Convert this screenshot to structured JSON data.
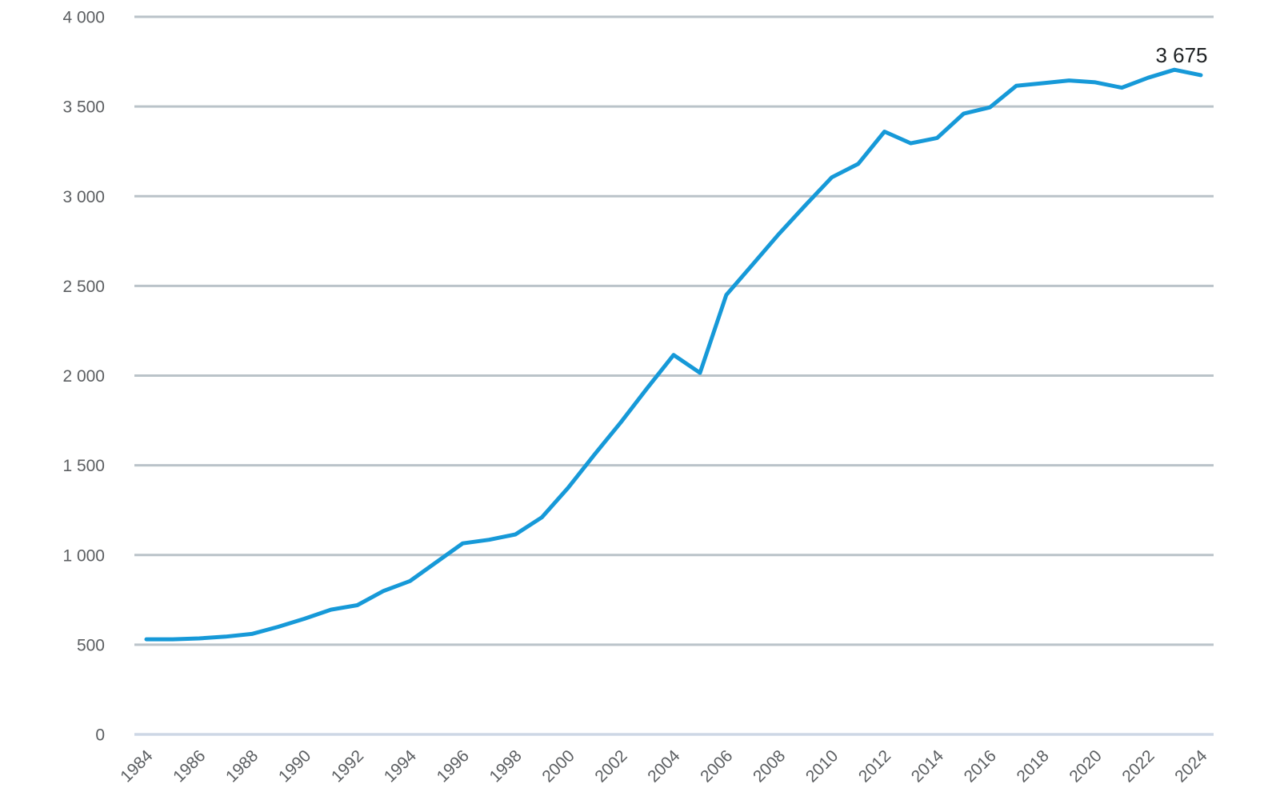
{
  "chart_data": {
    "type": "line",
    "title": "",
    "xlabel": "",
    "ylabel": "",
    "grid": true,
    "legend": "none",
    "ylim": [
      0,
      4000
    ],
    "x": [
      1984,
      1985,
      1986,
      1987,
      1988,
      1989,
      1990,
      1991,
      1992,
      1993,
      1994,
      1995,
      1996,
      1997,
      1998,
      1999,
      2000,
      2001,
      2002,
      2003,
      2004,
      2005,
      2006,
      2007,
      2008,
      2009,
      2010,
      2011,
      2012,
      2013,
      2014,
      2015,
      2016,
      2017,
      2018,
      2019,
      2020,
      2021,
      2022,
      2023,
      2024
    ],
    "values": [
      530,
      530,
      535,
      545,
      560,
      600,
      645,
      695,
      720,
      800,
      855,
      960,
      1065,
      1085,
      1115,
      1210,
      1375,
      1560,
      1740,
      1930,
      2115,
      2015,
      2450,
      2620,
      2790,
      2950,
      3105,
      3180,
      3360,
      3295,
      3325,
      3460,
      3495,
      3615,
      3630,
      3645,
      3635,
      3605,
      3660,
      3705,
      3675
    ],
    "y_ticks": [
      {
        "value": 0,
        "label": "0"
      },
      {
        "value": 500,
        "label": "500"
      },
      {
        "value": 1000,
        "label": "1 000"
      },
      {
        "value": 1500,
        "label": "1 500"
      },
      {
        "value": 2000,
        "label": "2 000"
      },
      {
        "value": 2500,
        "label": "2 500"
      },
      {
        "value": 3000,
        "label": "3 000"
      },
      {
        "value": 3500,
        "label": "3 500"
      },
      {
        "value": 4000,
        "label": "4 000"
      }
    ],
    "x_tick_labels": [
      "1984",
      "1986",
      "1988",
      "1990",
      "1992",
      "1994",
      "1996",
      "1998",
      "2000",
      "2002",
      "2004",
      "2006",
      "2008",
      "2010",
      "2012",
      "2014",
      "2016",
      "2018",
      "2020",
      "2022",
      "2024"
    ],
    "last_value_label": "3 675",
    "colors": {
      "series_line": "#1699d8",
      "grid_line": "#bac3c9",
      "axis_line": "#cdd7e5",
      "tick_text": "#5b5e61",
      "data_label_text": "#1f2224"
    }
  }
}
